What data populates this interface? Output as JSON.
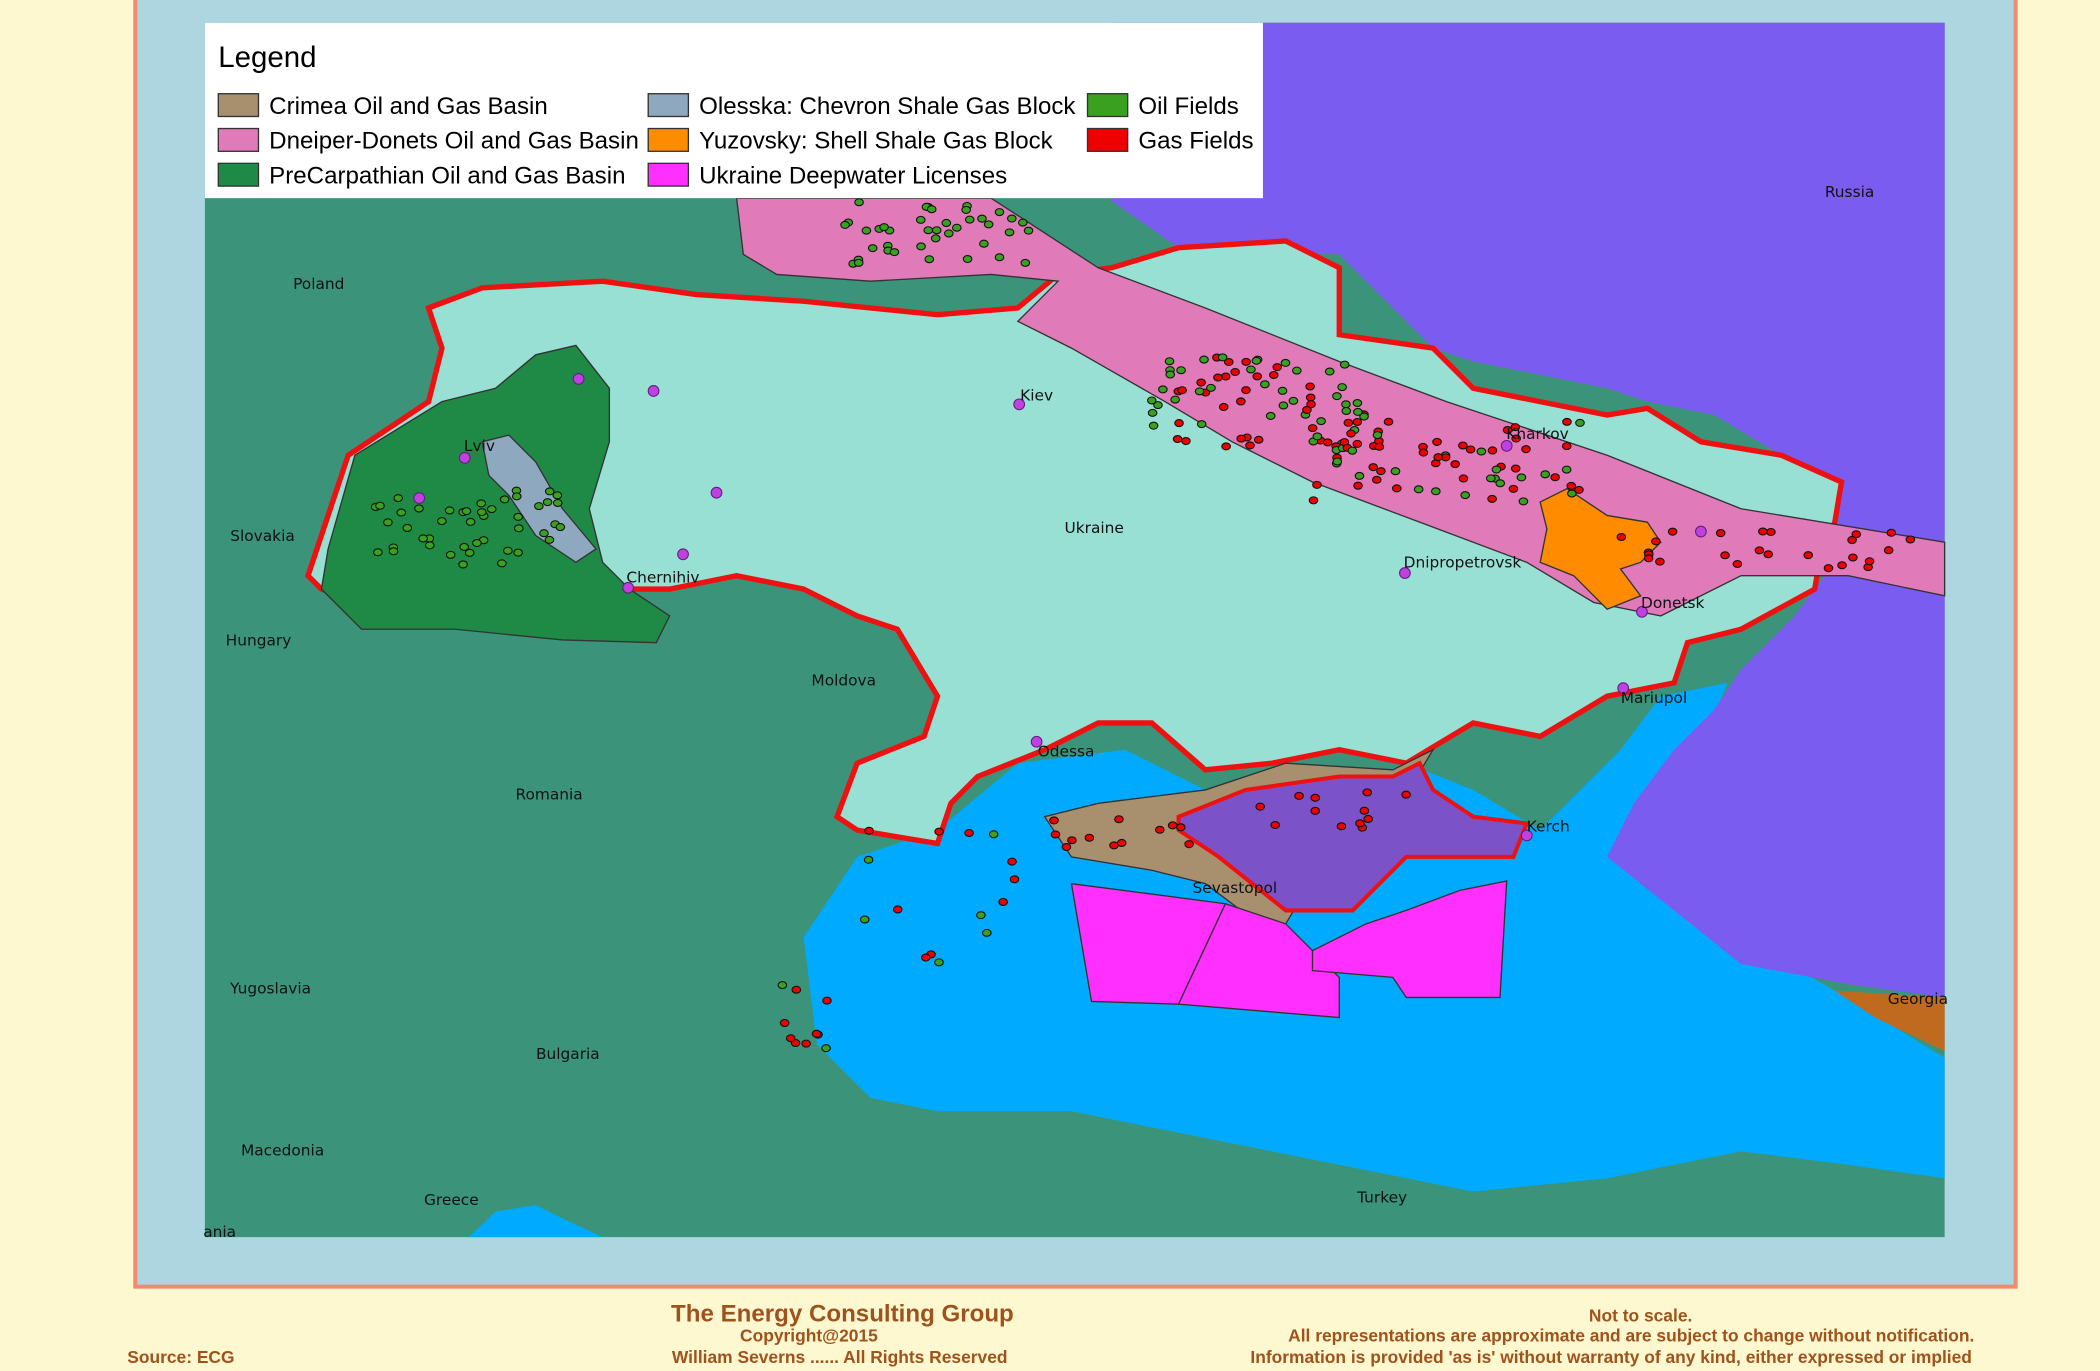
{
  "legend": {
    "title": "Legend",
    "items": [
      {
        "label": "Crimea Oil and Gas Basin",
        "color": "#a8906e"
      },
      {
        "label": "Dneiper-Donets Oil and Gas Basin",
        "color": "#e07ab8"
      },
      {
        "label": "PreCarpathian Oil and Gas Basin",
        "color": "#1e8a45"
      },
      {
        "label": "Olesska:  Chevron Shale Gas Block",
        "color": "#8ea8c0"
      },
      {
        "label": "Yuzovsky:  Shell Shale Gas Block",
        "color": "#ff8c00"
      },
      {
        "label": "Ukraine Deepwater Licenses",
        "color": "#ff2fff"
      },
      {
        "label": "Oil Fields",
        "color": "#3aa020"
      },
      {
        "label": "Gas Fields",
        "color": "#ee0000"
      }
    ]
  },
  "places": [
    "Poland",
    "Slovakia",
    "Hungary",
    "Romania",
    "Moldova",
    "Ukraine",
    "Russia",
    "Yugoslavia",
    "Bulgaria",
    "Macedonia",
    "Greece",
    "Turkey",
    "Georgia",
    "ania",
    "Kiev",
    "Lviv",
    "Kharkov",
    "Dnipropetrovsk",
    "Donetsk",
    "Mariupol",
    "Odessa",
    "Kerch",
    "Sevastopol",
    "Chernihiv"
  ],
  "footer": {
    "company": "The Energy Consulting Group",
    "copyright": "Copyright@2015",
    "author": "William Severns ...... All Rights Reserved",
    "source": "Source: ECG",
    "notes": [
      "Not to scale.",
      "All representations are approximate and are subject to change without notification.",
      "Information is provided 'as is' without warranty of any kind, either expressed or implied"
    ]
  }
}
